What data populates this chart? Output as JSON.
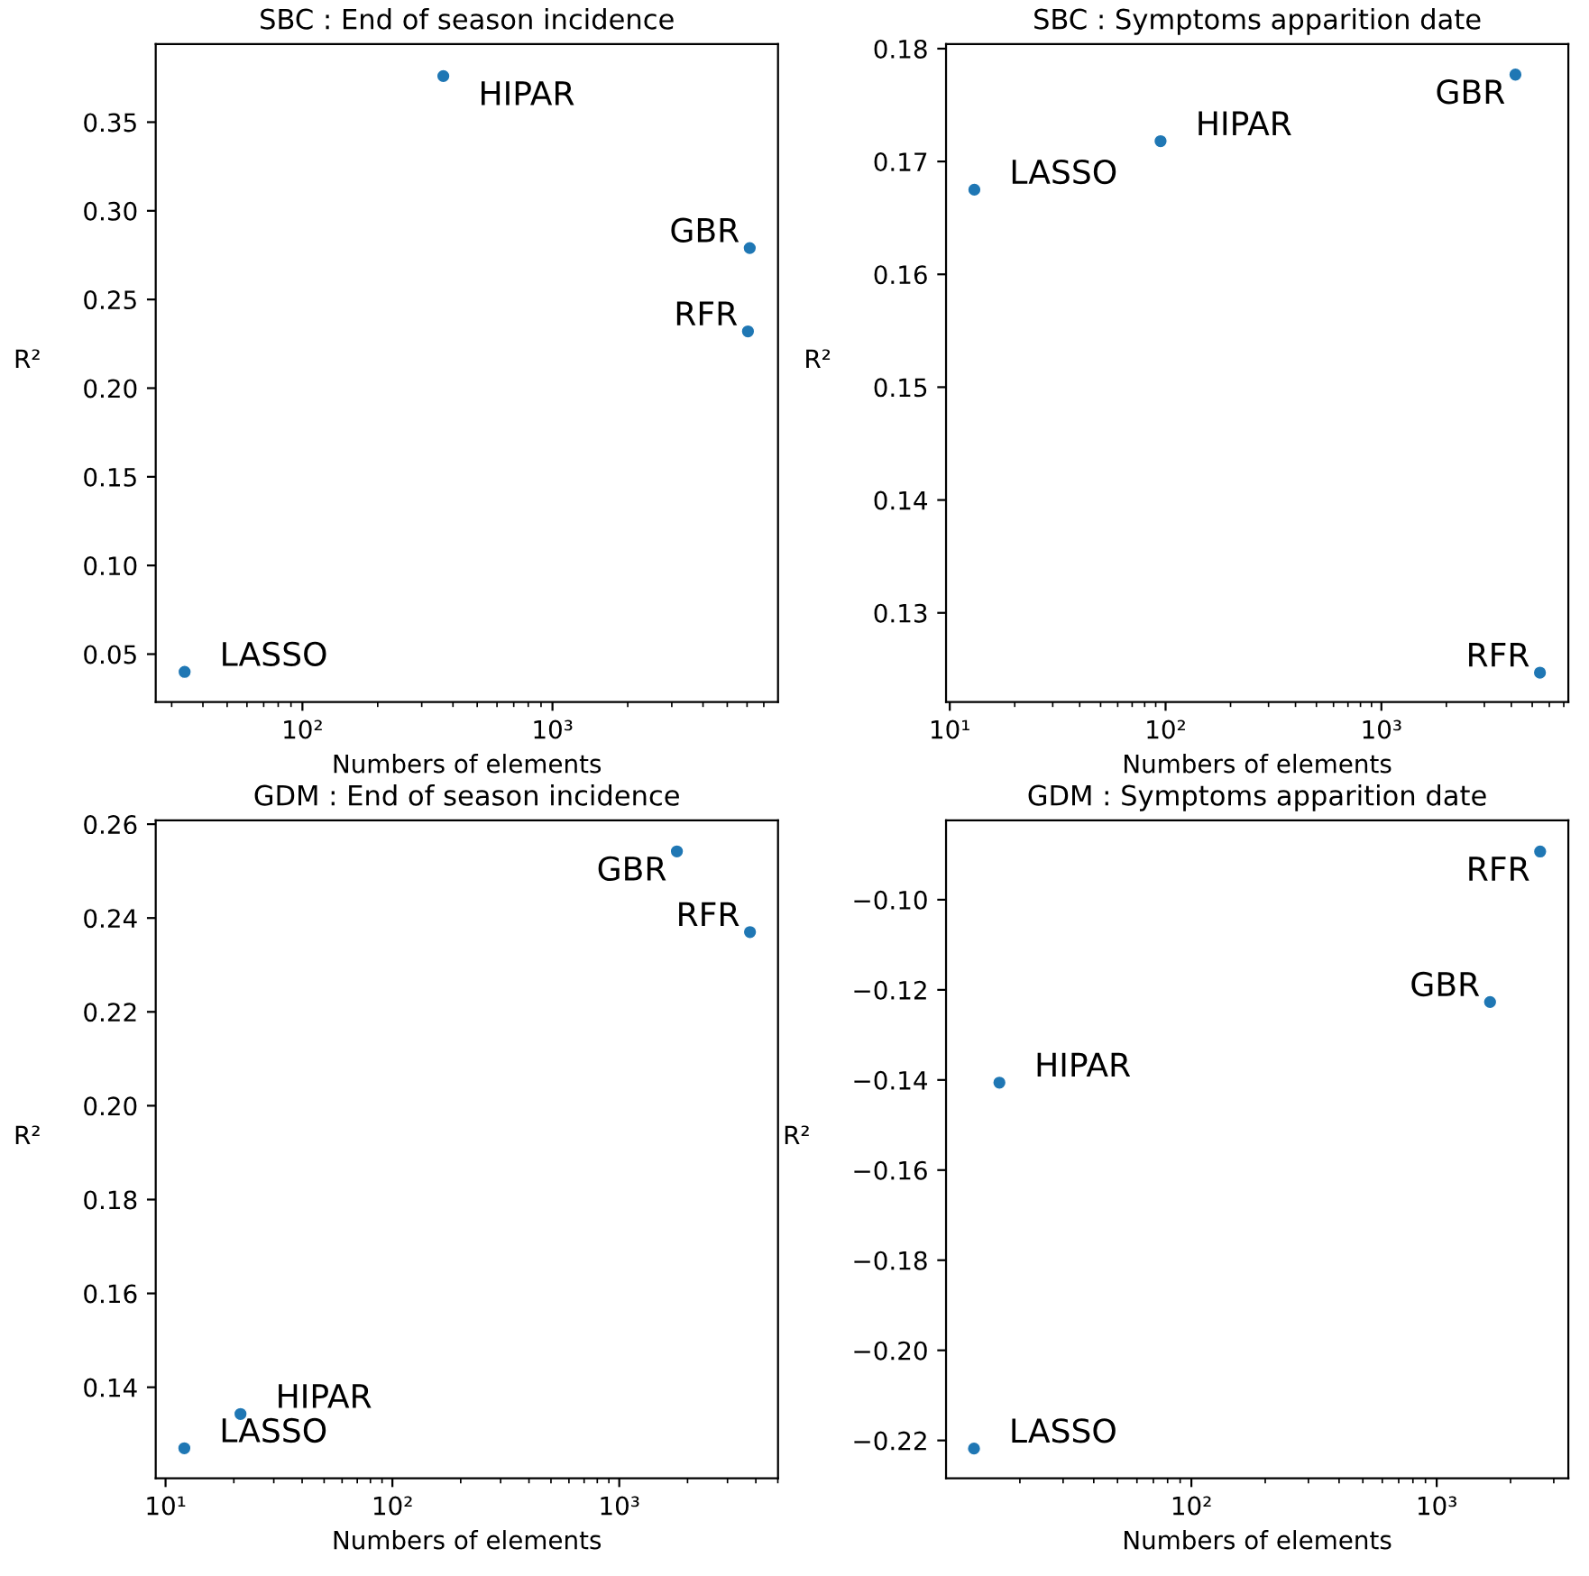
{
  "chart_data": [
    {
      "type": "scatter",
      "title": "SBC : End of season incidence",
      "xlabel": "Numbers of elements",
      "ylabel": "R²",
      "log": "x",
      "marker": "circle",
      "grid": false,
      "x": [
        33.8,
        366,
        6150,
        6050
      ],
      "series": [
        {
          "color": "#1f77b4",
          "values": [
            0.04,
            0.376,
            0.279,
            0.232
          ]
        }
      ],
      "xlim": [
        25.9,
        7980
      ],
      "xticks": [
        {
          "value": 100,
          "label": "10²"
        },
        {
          "value": 1000,
          "label": "10³"
        }
      ],
      "ylim": [
        0.023,
        0.394
      ],
      "yticks": [
        0.05,
        {
          "value": 0.1,
          "label": "0.10"
        },
        0.15,
        {
          "value": 0.2,
          "label": "0.20"
        },
        0.25,
        {
          "value": 0.3,
          "label": "0.30"
        },
        0.35
      ],
      "annotations": [
        {
          "text": "LASSO",
          "x": 33.8,
          "y": 0.04
        },
        {
          "text": "HIPAR",
          "x": 366,
          "y": 0.376
        },
        {
          "text": "GBR",
          "x": 6150,
          "y": 0.279
        },
        {
          "text": "RFR",
          "x": 6050,
          "y": 0.232
        }
      ]
    },
    {
      "type": "scatter",
      "title": "SBC : Symptoms apparition date",
      "xlabel": "Numbers of elements",
      "ylabel": "R²",
      "log": "x",
      "marker": "circle",
      "grid": false,
      "x": [
        13.0,
        94.8,
        4180,
        5430
      ],
      "series": [
        {
          "color": "#1f77b4",
          "values": [
            0.1675,
            0.1718,
            0.1777,
            0.1247
          ]
        }
      ],
      "xlim": [
        9.61,
        7350
      ],
      "xticks": [
        {
          "value": 10,
          "label": "10¹"
        },
        {
          "value": 100,
          "label": "10²"
        },
        {
          "value": 1000,
          "label": "10³"
        }
      ],
      "ylim": [
        0.1221,
        0.1804
      ],
      "yticks": [
        0.13,
        0.14,
        0.15,
        0.16,
        0.17,
        0.18
      ],
      "annotations": [
        {
          "text": "LASSO",
          "x": 13.0,
          "y": 0.1675
        },
        {
          "text": "HIPAR",
          "x": 94.8,
          "y": 0.1718
        },
        {
          "text": "GBR",
          "x": 4180,
          "y": 0.1777
        },
        {
          "text": "RFR",
          "x": 5430,
          "y": 0.1247
        }
      ]
    },
    {
      "type": "scatter",
      "title": "GDM : End of season incidence",
      "xlabel": "Numbers of elements",
      "ylabel": "R²",
      "log": "x",
      "marker": "circle",
      "grid": false,
      "x": [
        12.1,
        21.4,
        1795,
        3770
      ],
      "series": [
        {
          "color": "#1f77b4",
          "values": [
            0.127,
            0.1343,
            0.2542,
            0.237
          ]
        }
      ],
      "xlim": [
        9.05,
        5010
      ],
      "xticks": [
        {
          "value": 10,
          "label": "10¹"
        },
        {
          "value": 100,
          "label": "10²"
        },
        {
          "value": 1000,
          "label": "10³"
        }
      ],
      "ylim": [
        0.1206,
        0.2608
      ],
      "yticks": [
        0.14,
        0.16,
        0.18,
        {
          "value": 0.2,
          "label": "0.20"
        },
        0.22,
        0.24,
        0.26
      ],
      "annotations": [
        {
          "text": "LASSO",
          "x": 12.1,
          "y": 0.127
        },
        {
          "text": "HIPAR",
          "x": 21.4,
          "y": 0.1343
        },
        {
          "text": "GBR",
          "x": 1795,
          "y": 0.2542
        },
        {
          "text": "RFR",
          "x": 3770,
          "y": 0.237
        }
      ]
    },
    {
      "type": "scatter",
      "title": "GDM : Symptoms apparition date",
      "xlabel": "Numbers of elements",
      "ylabel": "R²",
      "log": "x",
      "marker": "circle",
      "grid": false,
      "x": [
        13.0,
        16.5,
        1650,
        2640
      ],
      "series": [
        {
          "color": "#1f77b4",
          "values": [
            -0.2218,
            -0.1406,
            -0.1227,
            -0.0893
          ]
        }
      ],
      "xlim": [
        10.0,
        3440
      ],
      "xticks": [
        {
          "value": 100,
          "label": "10²"
        },
        {
          "value": 1000,
          "label": "10³"
        }
      ],
      "ylim": [
        -0.2284,
        -0.0824
      ],
      "yticks": [
        {
          "value": -0.22,
          "label": "−0.22"
        },
        {
          "value": -0.2,
          "label": "−0.20"
        },
        {
          "value": -0.18,
          "label": "−0.18"
        },
        {
          "value": -0.16,
          "label": "−0.16"
        },
        {
          "value": -0.14,
          "label": "−0.14"
        },
        {
          "value": -0.12,
          "label": "−0.12"
        },
        {
          "value": -0.1,
          "label": "−0.10"
        }
      ],
      "annotations": [
        {
          "text": "LASSO",
          "x": 13.0,
          "y": -0.2218
        },
        {
          "text": "HIPAR",
          "x": 16.5,
          "y": -0.1406
        },
        {
          "text": "GBR",
          "x": 1650,
          "y": -0.1227
        },
        {
          "text": "RFR",
          "x": 2640,
          "y": -0.0893
        }
      ]
    }
  ]
}
